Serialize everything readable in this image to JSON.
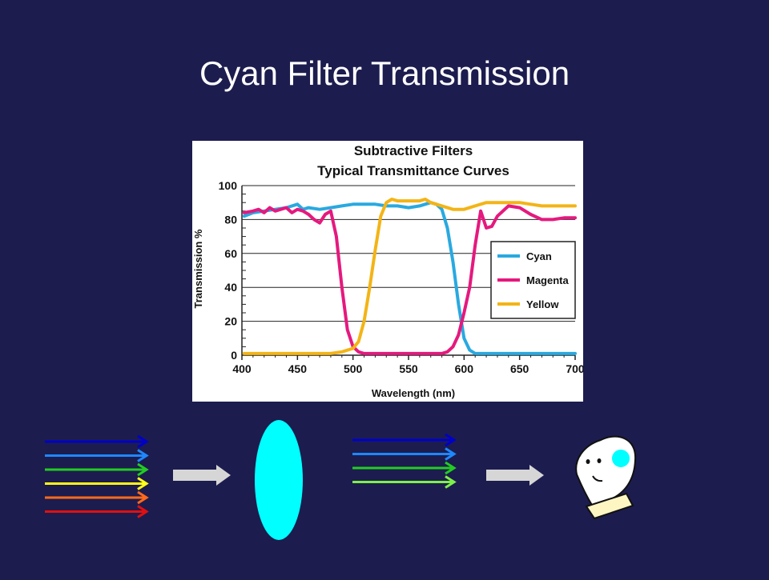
{
  "slide": {
    "title": "Cyan Filter Transmission"
  },
  "chart_data": {
    "type": "line",
    "title": "Subtractive Filters",
    "subtitle": "Typical Transmittance Curves",
    "xlabel": "Wavelength (nm)",
    "ylabel": "Transmission %",
    "xlim": [
      400,
      700
    ],
    "ylim": [
      0,
      100
    ],
    "xticks": [
      400,
      450,
      500,
      550,
      600,
      650,
      700
    ],
    "yticks": [
      0,
      20,
      40,
      60,
      80,
      100
    ],
    "grid": "horizontal",
    "legend_position": "right",
    "series": [
      {
        "name": "Cyan",
        "color": "#29a9e0",
        "x": [
          402,
          410,
          420,
          430,
          440,
          450,
          455,
          460,
          470,
          480,
          490,
          500,
          510,
          520,
          530,
          540,
          550,
          560,
          570,
          575,
          580,
          585,
          590,
          595,
          600,
          605,
          610,
          620,
          640,
          660,
          680,
          700
        ],
        "y": [
          82,
          84,
          85,
          86,
          87,
          89,
          86,
          87,
          86,
          87,
          88,
          89,
          89,
          89,
          88,
          88,
          87,
          88,
          90,
          89,
          86,
          75,
          55,
          30,
          10,
          3,
          1,
          1,
          1,
          1,
          1,
          1
        ]
      },
      {
        "name": "Magenta",
        "color": "#e5197e",
        "x": [
          402,
          410,
          415,
          420,
          425,
          430,
          435,
          440,
          445,
          450,
          455,
          460,
          465,
          470,
          475,
          480,
          485,
          490,
          495,
          500,
          505,
          510,
          520,
          540,
          560,
          570,
          580,
          585,
          590,
          595,
          600,
          605,
          610,
          615,
          620,
          625,
          630,
          640,
          650,
          660,
          670,
          680,
          690,
          700
        ],
        "y": [
          84,
          85,
          86,
          84,
          87,
          85,
          86,
          87,
          84,
          86,
          85,
          83,
          80,
          78,
          83,
          85,
          70,
          40,
          15,
          5,
          2,
          1,
          1,
          1,
          1,
          1,
          1,
          2,
          5,
          12,
          25,
          40,
          65,
          85,
          75,
          76,
          82,
          88,
          87,
          83,
          80,
          80,
          81,
          81
        ]
      },
      {
        "name": "Yellow",
        "color": "#f3b416",
        "x": [
          402,
          420,
          440,
          460,
          480,
          490,
          500,
          505,
          510,
          515,
          520,
          525,
          530,
          535,
          540,
          550,
          560,
          565,
          570,
          580,
          590,
          600,
          610,
          620,
          630,
          640,
          650,
          660,
          670,
          680,
          690,
          700
        ],
        "y": [
          1,
          1,
          1,
          1,
          1,
          2,
          4,
          8,
          20,
          40,
          62,
          82,
          90,
          92,
          91,
          91,
          91,
          92,
          90,
          88,
          86,
          86,
          88,
          90,
          90,
          90,
          90,
          89,
          88,
          88,
          88,
          88
        ]
      }
    ]
  },
  "diagram": {
    "incoming_rays": [
      "#0000c8",
      "#1e88ff",
      "#22cc22",
      "#ffff1a",
      "#ff6a1a",
      "#e01010"
    ],
    "filter_color": "#00ffff",
    "arrow_color": "#d6d6d6",
    "outgoing_rays": [
      "#0000c8",
      "#1e88ff",
      "#22cc22",
      "#7df04a"
    ],
    "eye_color": "#00ffff",
    "face_icon": "viewer-face-icon"
  }
}
